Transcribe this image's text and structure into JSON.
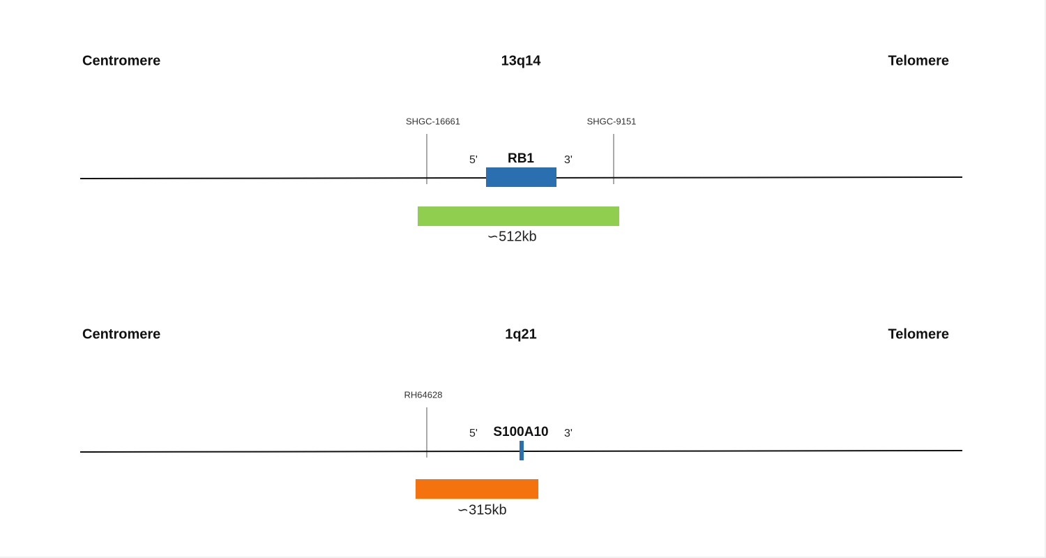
{
  "panels": [
    {
      "left_label": "Centromere",
      "locus": "13q14",
      "right_label": "Telomere",
      "markers": [
        "SHGC-16661",
        "SHGC-9151"
      ],
      "five_prime": "5'",
      "gene": "RB1",
      "three_prime": "3'",
      "probe_size": "∽512kb"
    },
    {
      "left_label": "Centromere",
      "locus": "1q21",
      "right_label": "Telomere",
      "markers": [
        "RH64628"
      ],
      "five_prime": "5'",
      "gene": "S100A10",
      "three_prime": "3'",
      "probe_size": "∽315kb"
    }
  ]
}
